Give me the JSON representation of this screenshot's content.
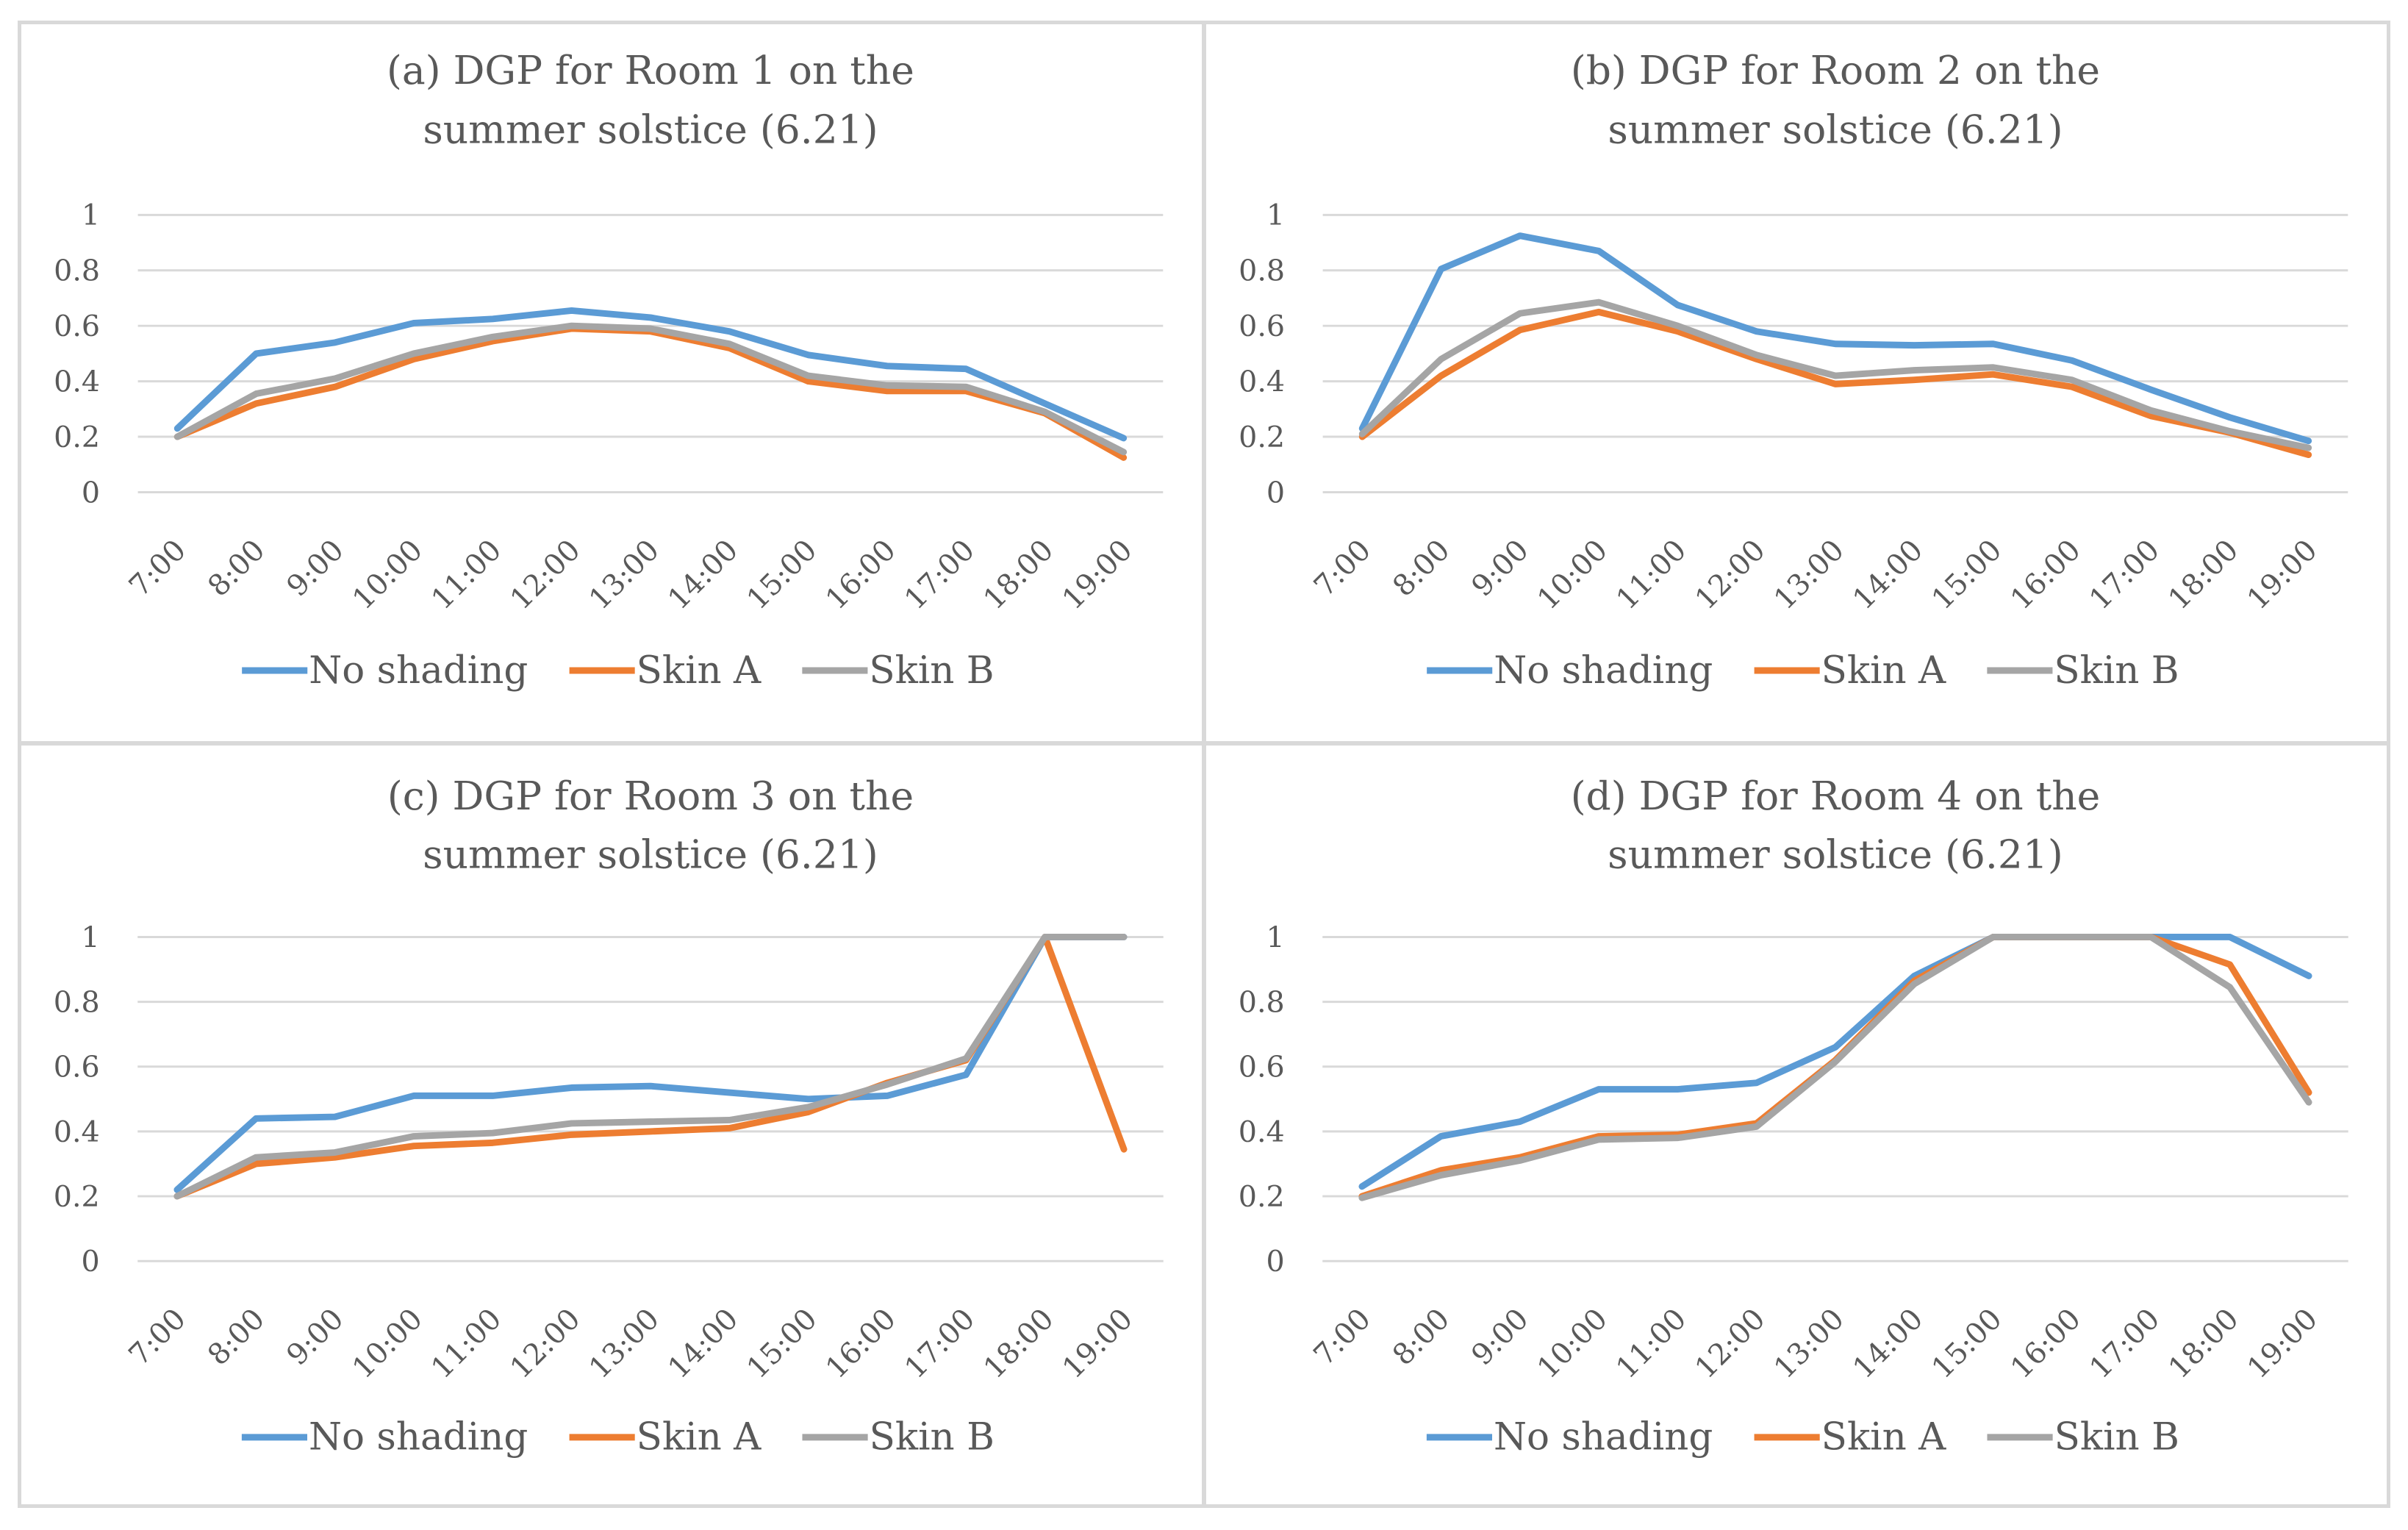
{
  "chart_data": [
    {
      "type": "line",
      "title_lines": [
        "(a) DGP for Room 1 on the",
        "summer solstice (6.21)"
      ],
      "categories": [
        "7:00",
        "8:00",
        "9:00",
        "10:00",
        "11:00",
        "12:00",
        "13:00",
        "14:00",
        "15:00",
        "16:00",
        "17:00",
        "18:00",
        "19:00"
      ],
      "y_ticks": [
        "0",
        "0.2",
        "0.4",
        "0.6",
        "0.8",
        "1"
      ],
      "ylim": [
        0,
        1
      ],
      "grid": true,
      "legend_position": "bottom",
      "series": [
        {
          "name": "No shading",
          "color": "#5b9bd5",
          "values": [
            0.23,
            0.5,
            0.54,
            0.61,
            0.625,
            0.655,
            0.63,
            0.58,
            0.495,
            0.455,
            0.445,
            0.32,
            0.195
          ]
        },
        {
          "name": "Skin A",
          "color": "#ed7d31",
          "values": [
            0.2,
            0.32,
            0.38,
            0.48,
            0.545,
            0.59,
            0.58,
            0.52,
            0.4,
            0.365,
            0.365,
            0.285,
            0.125
          ]
        },
        {
          "name": "Skin B",
          "color": "#a5a5a5",
          "values": [
            0.2,
            0.355,
            0.41,
            0.5,
            0.56,
            0.6,
            0.59,
            0.535,
            0.42,
            0.385,
            0.38,
            0.29,
            0.145
          ]
        }
      ]
    },
    {
      "type": "line",
      "title_lines": [
        "(b) DGP for Room 2 on the",
        "summer solstice (6.21)"
      ],
      "categories": [
        "7:00",
        "8:00",
        "9:00",
        "10:00",
        "11:00",
        "12:00",
        "13:00",
        "14:00",
        "15:00",
        "16:00",
        "17:00",
        "18:00",
        "19:00"
      ],
      "y_ticks": [
        "0",
        "0.2",
        "0.4",
        "0.6",
        "0.8",
        "1"
      ],
      "ylim": [
        0,
        1
      ],
      "grid": true,
      "legend_position": "bottom",
      "series": [
        {
          "name": "No shading",
          "color": "#5b9bd5",
          "values": [
            0.23,
            0.805,
            0.925,
            0.87,
            0.675,
            0.58,
            0.535,
            0.53,
            0.535,
            0.475,
            0.37,
            0.27,
            0.185
          ]
        },
        {
          "name": "Skin A",
          "color": "#ed7d31",
          "values": [
            0.2,
            0.42,
            0.585,
            0.65,
            0.58,
            0.48,
            0.39,
            0.405,
            0.425,
            0.38,
            0.275,
            0.215,
            0.135
          ]
        },
        {
          "name": "Skin B",
          "color": "#a5a5a5",
          "values": [
            0.21,
            0.48,
            0.645,
            0.685,
            0.6,
            0.495,
            0.42,
            0.44,
            0.45,
            0.405,
            0.295,
            0.22,
            0.16
          ]
        }
      ]
    },
    {
      "type": "line",
      "title_lines": [
        "(c) DGP for Room 3 on the",
        "summer solstice (6.21)"
      ],
      "categories": [
        "7:00",
        "8:00",
        "9:00",
        "10:00",
        "11:00",
        "12:00",
        "13:00",
        "14:00",
        "15:00",
        "16:00",
        "17:00",
        "18:00",
        "19:00"
      ],
      "y_ticks": [
        "0",
        "0.2",
        "0.4",
        "0.6",
        "0.8",
        "1"
      ],
      "ylim": [
        0,
        1
      ],
      "grid": true,
      "legend_position": "bottom",
      "series": [
        {
          "name": "No shading",
          "color": "#5b9bd5",
          "values": [
            0.22,
            0.44,
            0.445,
            0.51,
            0.51,
            0.535,
            0.54,
            0.52,
            0.5,
            0.51,
            0.575,
            1.0,
            1.0
          ]
        },
        {
          "name": "Skin A",
          "color": "#ed7d31",
          "values": [
            0.2,
            0.3,
            0.32,
            0.355,
            0.365,
            0.39,
            0.4,
            0.41,
            0.46,
            0.55,
            0.62,
            1.0,
            0.345
          ]
        },
        {
          "name": "Skin B",
          "color": "#a5a5a5",
          "values": [
            0.2,
            0.32,
            0.335,
            0.385,
            0.395,
            0.425,
            0.43,
            0.435,
            0.475,
            0.545,
            0.625,
            1.0,
            1.0
          ]
        }
      ]
    },
    {
      "type": "line",
      "title_lines": [
        "(d) DGP for Room 4 on the",
        "summer solstice (6.21)"
      ],
      "categories": [
        "7:00",
        "8:00",
        "9:00",
        "10:00",
        "11:00",
        "12:00",
        "13:00",
        "14:00",
        "15:00",
        "16:00",
        "17:00",
        "18:00",
        "19:00"
      ],
      "y_ticks": [
        "0",
        "0.2",
        "0.4",
        "0.6",
        "0.8",
        "1"
      ],
      "ylim": [
        0,
        1
      ],
      "grid": true,
      "legend_position": "bottom",
      "series": [
        {
          "name": "No shading",
          "color": "#5b9bd5",
          "values": [
            0.23,
            0.385,
            0.43,
            0.53,
            0.53,
            0.55,
            0.66,
            0.88,
            1.0,
            1.0,
            1.0,
            1.0,
            0.88
          ]
        },
        {
          "name": "Skin A",
          "color": "#ed7d31",
          "values": [
            0.2,
            0.28,
            0.32,
            0.385,
            0.39,
            0.425,
            0.62,
            0.865,
            1.0,
            1.0,
            1.0,
            0.915,
            0.52
          ]
        },
        {
          "name": "Skin B",
          "color": "#a5a5a5",
          "values": [
            0.195,
            0.265,
            0.31,
            0.375,
            0.38,
            0.415,
            0.615,
            0.855,
            1.0,
            1.0,
            1.0,
            0.845,
            0.49
          ]
        }
      ]
    }
  ]
}
